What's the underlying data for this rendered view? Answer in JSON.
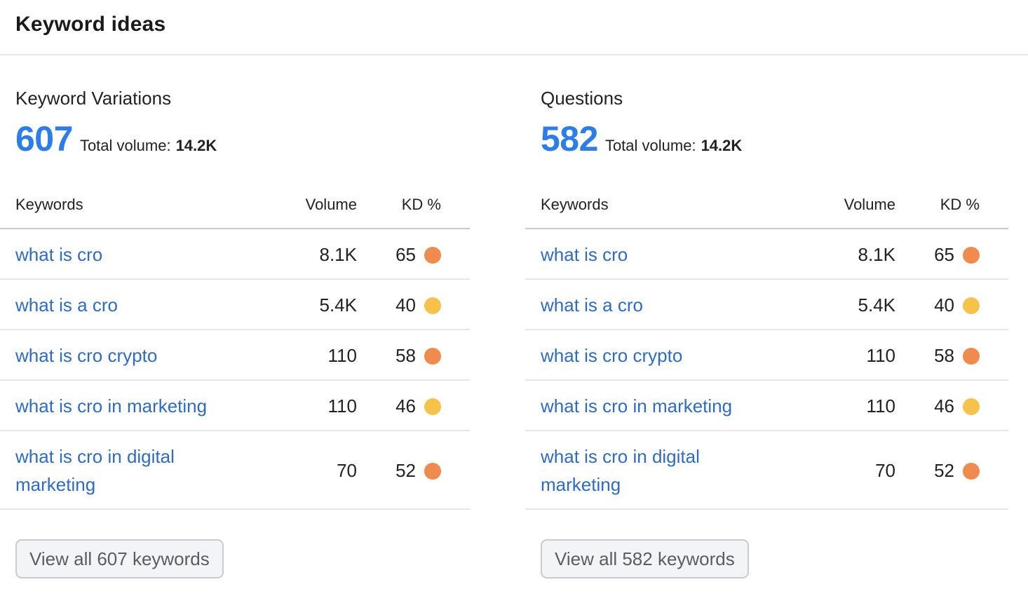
{
  "header": {
    "title": "Keyword ideas"
  },
  "columns": {
    "keywords": "Keywords",
    "volume": "Volume",
    "kd": "KD %"
  },
  "panels": [
    {
      "title": "Keyword Variations",
      "count": "607",
      "total_volume_label": "Total volume:",
      "total_volume_value": "14.2K",
      "rows": [
        {
          "keyword": "what is cro",
          "volume": "8.1K",
          "kd": "65",
          "kd_color": "#f08b4e"
        },
        {
          "keyword": "what is a cro",
          "volume": "5.4K",
          "kd": "40",
          "kd_color": "#f6c24a"
        },
        {
          "keyword": "what is cro crypto",
          "volume": "110",
          "kd": "58",
          "kd_color": "#f08b4e"
        },
        {
          "keyword": "what is cro in marketing",
          "volume": "110",
          "kd": "46",
          "kd_color": "#f6c24a"
        },
        {
          "keyword": "what is cro in digital marketing",
          "volume": "70",
          "kd": "52",
          "kd_color": "#f08b4e"
        }
      ],
      "button_label": "View all 607 keywords"
    },
    {
      "title": "Questions",
      "count": "582",
      "total_volume_label": "Total volume:",
      "total_volume_value": "14.2K",
      "rows": [
        {
          "keyword": "what is cro",
          "volume": "8.1K",
          "kd": "65",
          "kd_color": "#f08b4e"
        },
        {
          "keyword": "what is a cro",
          "volume": "5.4K",
          "kd": "40",
          "kd_color": "#f6c24a"
        },
        {
          "keyword": "what is cro crypto",
          "volume": "110",
          "kd": "58",
          "kd_color": "#f08b4e"
        },
        {
          "keyword": "what is cro in marketing",
          "volume": "110",
          "kd": "46",
          "kd_color": "#f6c24a"
        },
        {
          "keyword": "what is cro in digital marketing",
          "volume": "70",
          "kd": "52",
          "kd_color": "#f08b4e"
        }
      ],
      "button_label": "View all 582 keywords"
    }
  ],
  "colors": {
    "accent": "#2b7de9",
    "link": "#2e6bc4",
    "kd_hard": "#f08b4e",
    "kd_medium": "#f6c24a"
  }
}
